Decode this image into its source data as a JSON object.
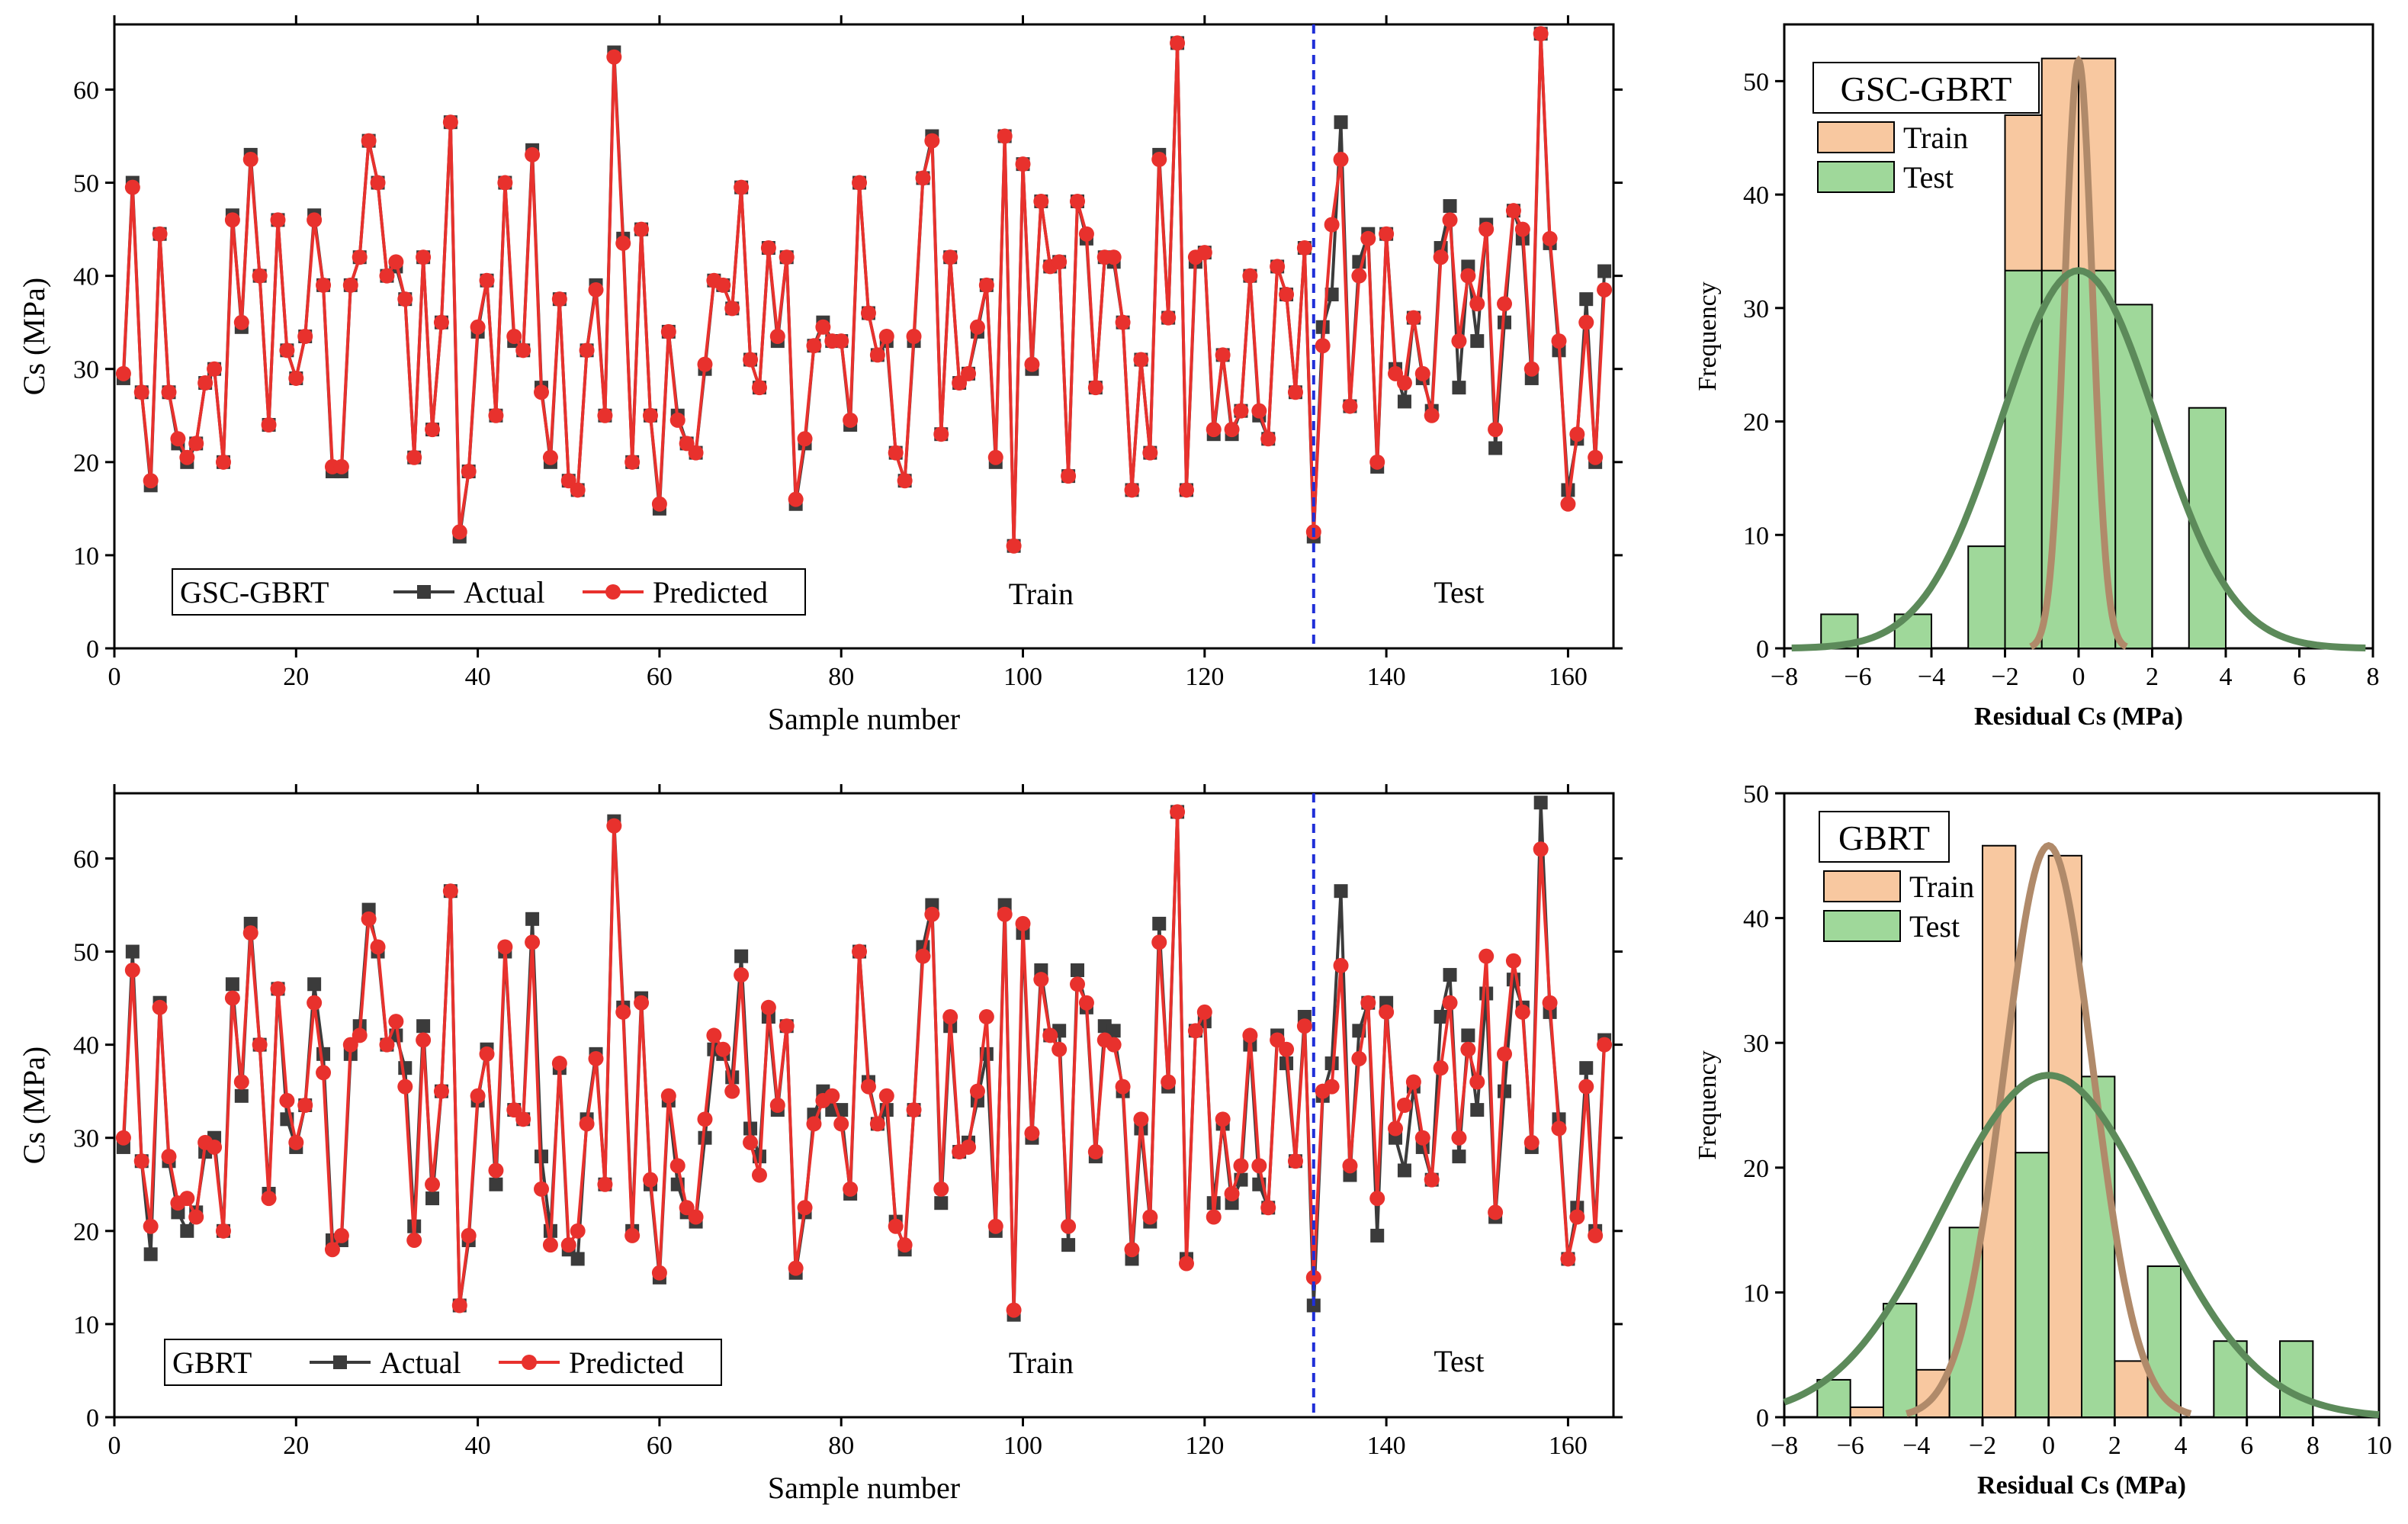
{
  "colors": {
    "actual": "#3b3b3b",
    "predicted": "#e8312d",
    "divider": "#1f2fd8",
    "train_bar": "#f8c8a0",
    "test_bar": "#9fd89a",
    "train_curve": "#b08a6a",
    "test_curve": "#5c8a5a"
  },
  "chart_data": [
    {
      "type": "line",
      "model": "GSC-GBRT",
      "legend": [
        "GSC-GBRT",
        "Actual",
        "Predicted"
      ],
      "xlabel": "Sample number",
      "ylabel": "Cs (MPa)",
      "xlim": [
        0,
        165
      ],
      "ylim": [
        0,
        67
      ],
      "xticks": [
        0,
        20,
        40,
        60,
        80,
        100,
        120,
        140,
        160
      ],
      "yticks": [
        0,
        10,
        20,
        30,
        40,
        50,
        60
      ],
      "split_at": 132,
      "region_labels": [
        "Train",
        "Test"
      ],
      "series": [
        {
          "name": "Actual",
          "values": [
            29,
            50,
            27.5,
            17.5,
            44.5,
            27.5,
            22,
            20,
            22,
            28.5,
            30,
            20,
            46.5,
            34.5,
            53,
            40,
            24,
            46,
            32,
            29,
            33.5,
            46.5,
            39,
            19,
            19,
            39,
            42,
            54.5,
            50,
            40,
            41,
            37.5,
            20.5,
            42,
            23.5,
            35,
            56.5,
            12,
            19,
            34,
            39.5,
            25,
            50,
            33,
            32,
            53.5,
            28,
            20,
            37.5,
            18,
            17,
            32,
            39,
            25,
            64,
            44,
            20,
            45,
            25,
            15,
            34,
            25,
            22,
            21,
            30,
            39.5,
            39,
            36.5,
            49.5,
            31,
            28,
            43,
            33,
            42,
            15.5,
            22,
            32.5,
            35,
            33,
            33,
            24,
            50,
            36,
            31.5,
            33,
            21,
            18,
            33,
            50.5,
            55,
            23,
            42,
            28.5,
            29.5,
            34,
            39,
            20,
            55,
            11,
            52,
            30,
            48,
            41,
            41.5,
            18.5,
            48,
            44,
            28,
            42,
            41.5,
            35,
            17,
            31,
            21,
            53,
            35.5,
            65,
            17,
            41.5,
            42.5,
            23,
            31.5,
            23,
            25.5,
            40,
            25,
            22.5,
            41,
            38,
            27.5,
            43,
            12,
            34.5,
            38,
            56.5,
            26,
            41.5,
            44.5,
            19.5,
            44.5,
            30,
            26.5,
            35.5,
            29,
            25.5,
            43,
            47.5,
            28,
            41,
            33,
            45.5,
            21.5,
            35,
            47,
            44,
            29,
            66,
            43.5,
            32,
            17,
            22.5,
            37.5,
            20,
            40.5
          ]
        },
        {
          "name": "Predicted",
          "values": [
            29.5,
            49.5,
            27.5,
            18,
            44.5,
            27.5,
            22.5,
            20.5,
            22,
            28.5,
            30,
            20,
            46,
            35,
            52.5,
            40,
            24,
            46,
            32,
            29,
            33.5,
            46,
            39,
            19.5,
            19.5,
            39,
            42,
            54.5,
            50,
            40,
            41.5,
            37.5,
            20.5,
            42,
            23.5,
            35,
            56.5,
            12.5,
            19,
            34.5,
            39.5,
            25,
            50,
            33.5,
            32,
            53,
            27.5,
            20.5,
            37.5,
            18,
            17,
            32,
            38.5,
            25,
            63.5,
            43.5,
            20,
            45,
            25,
            15.5,
            34,
            24.5,
            22,
            21,
            30.5,
            39.5,
            39,
            36.5,
            49.5,
            31,
            28,
            43,
            33.5,
            42,
            16,
            22.5,
            32.5,
            34.5,
            33,
            33,
            24.5,
            50,
            36,
            31.5,
            33.5,
            21,
            18,
            33.5,
            50.5,
            54.5,
            23,
            42,
            28.5,
            29.5,
            34.5,
            39,
            20.5,
            55,
            11,
            52,
            30.5,
            48,
            41,
            41.5,
            18.5,
            48,
            44.5,
            28,
            42,
            42,
            35,
            17,
            31,
            21,
            52.5,
            35.5,
            65,
            17,
            42,
            42.5,
            23.5,
            31.5,
            23.5,
            25.5,
            40,
            25.5,
            22.5,
            41,
            38,
            27.5,
            43,
            12.5,
            32.5,
            45.5,
            52.5,
            26,
            40,
            44,
            20,
            44.5,
            29.5,
            28.5,
            35.5,
            29.5,
            25,
            42,
            46,
            33,
            40,
            37,
            45,
            23.5,
            37,
            47,
            45,
            30,
            66,
            44,
            33,
            15.5,
            23,
            35,
            20.5,
            38.5
          ]
        }
      ]
    },
    {
      "type": "histogram",
      "model": "GSC-GBRT",
      "legend_title": "GSC-GBRT",
      "legend": [
        "Train",
        "Test"
      ],
      "xlabel": "Residual Cs (MPa)",
      "ylabel": "Frequency",
      "xlim": [
        -8,
        8
      ],
      "ylim": [
        0,
        55
      ],
      "xticks": [
        -8,
        -6,
        -4,
        -2,
        0,
        2,
        4,
        6,
        8
      ],
      "yticks": [
        0,
        10,
        20,
        30,
        40,
        50
      ],
      "series": [
        {
          "name": "Train",
          "bins": [
            [
              -2,
              -1,
              47
            ],
            [
              -1,
              0,
              52
            ],
            [
              0,
              1,
              52
            ]
          ]
        },
        {
          "name": "Test",
          "bins": [
            [
              -7,
              -6,
              3
            ],
            [
              -6,
              -5,
              0
            ],
            [
              -5,
              -4,
              3
            ],
            [
              -4,
              -3,
              0
            ],
            [
              -3,
              -2,
              9
            ],
            [
              -2,
              -1,
              33.3
            ],
            [
              -1,
              0,
              33.3
            ],
            [
              0,
              1,
              33.3
            ],
            [
              1,
              2,
              30.3
            ],
            [
              2,
              3,
              0
            ],
            [
              3,
              4,
              21.2
            ]
          ]
        }
      ],
      "fits": [
        {
          "name": "Train",
          "mean": 0.0,
          "sd": 0.38,
          "peak": 51.8,
          "range": [
            -1.3,
            1.3
          ]
        },
        {
          "name": "Test",
          "mean": 0.0,
          "sd": 2.1,
          "peak": 33.3,
          "range": [
            -7.8,
            7.8
          ]
        }
      ]
    },
    {
      "type": "line",
      "model": "GBRT",
      "legend": [
        "GBRT",
        "Actual",
        "Predicted"
      ],
      "xlabel": "Sample number",
      "ylabel": "Cs (MPa)",
      "xlim": [
        0,
        165
      ],
      "ylim": [
        0,
        67
      ],
      "xticks": [
        0,
        20,
        40,
        60,
        80,
        100,
        120,
        140,
        160
      ],
      "yticks": [
        0,
        10,
        20,
        30,
        40,
        50,
        60
      ],
      "split_at": 132,
      "region_labels": [
        "Train",
        "Test"
      ],
      "series": [
        {
          "name": "Actual",
          "values": [
            29,
            50,
            27.5,
            17.5,
            44.5,
            27.5,
            22,
            20,
            22,
            28.5,
            30,
            20,
            46.5,
            34.5,
            53,
            40,
            24,
            46,
            32,
            29,
            33.5,
            46.5,
            39,
            19,
            19,
            39,
            42,
            54.5,
            50,
            40,
            41,
            37.5,
            20.5,
            42,
            23.5,
            35,
            56.5,
            12,
            19,
            34,
            39.5,
            25,
            50,
            33,
            32,
            53.5,
            28,
            20,
            37.5,
            18,
            17,
            32,
            39,
            25,
            64,
            44,
            20,
            45,
            25,
            15,
            34,
            25,
            22,
            21,
            30,
            39.5,
            39,
            36.5,
            49.5,
            31,
            28,
            43,
            33,
            42,
            15.5,
            22,
            32.5,
            35,
            33,
            33,
            24,
            50,
            36,
            31.5,
            33,
            21,
            18,
            33,
            50.5,
            55,
            23,
            42,
            28.5,
            29.5,
            34,
            39,
            20,
            55,
            11,
            52,
            30,
            48,
            41,
            41.5,
            18.5,
            48,
            44,
            28,
            42,
            41.5,
            35,
            17,
            31,
            21,
            53,
            35.5,
            65,
            17,
            41.5,
            42.5,
            23,
            31.5,
            23,
            25.5,
            40,
            25,
            22.5,
            41,
            38,
            27.5,
            43,
            12,
            34.5,
            38,
            56.5,
            26,
            41.5,
            44.5,
            19.5,
            44.5,
            30,
            26.5,
            35.5,
            29,
            25.5,
            43,
            47.5,
            28,
            41,
            33,
            45.5,
            21.5,
            35,
            47,
            44,
            29,
            66,
            43.5,
            32,
            17,
            22.5,
            37.5,
            20,
            40.5
          ]
        },
        {
          "name": "Predicted",
          "values": [
            30,
            48,
            27.5,
            20.5,
            44,
            28,
            23,
            23.5,
            21.5,
            29.5,
            29,
            20,
            45,
            36,
            52,
            40,
            23.5,
            46,
            34,
            29.5,
            33.5,
            44.5,
            37,
            18,
            19.5,
            40,
            41,
            53.5,
            50.5,
            40,
            42.5,
            35.5,
            19,
            40.5,
            25,
            35,
            56.5,
            12,
            19.5,
            34.5,
            39,
            26.5,
            50.5,
            33,
            32,
            51,
            24.5,
            18.5,
            38,
            18.5,
            20,
            31.5,
            38.5,
            25,
            63.5,
            43.5,
            19.5,
            44.5,
            25.5,
            15.5,
            34.5,
            27,
            22.5,
            21.5,
            32,
            41,
            39.5,
            35,
            47.5,
            29.5,
            26,
            44,
            33.5,
            42,
            16,
            22.5,
            31.5,
            34,
            34.5,
            31.5,
            24.5,
            50,
            35.5,
            31.5,
            34.5,
            20.5,
            18.5,
            33,
            49.5,
            54,
            24.5,
            43,
            28.5,
            29,
            35,
            43,
            20.5,
            54,
            11.5,
            53,
            30.5,
            47,
            41,
            39.5,
            20.5,
            46.5,
            44.5,
            28.5,
            40.5,
            40,
            35.5,
            18,
            32,
            21.5,
            51,
            36,
            65,
            16.5,
            41.5,
            43.5,
            21.5,
            32,
            24,
            27,
            41,
            27,
            22.5,
            40.5,
            39.5,
            27.5,
            42,
            15,
            35,
            35.5,
            48.5,
            27,
            38.5,
            44.5,
            23.5,
            43.5,
            31,
            33.5,
            36,
            30,
            25.5,
            37.5,
            44.5,
            30,
            39.5,
            36,
            49.5,
            22,
            39,
            49,
            43.5,
            29.5,
            61,
            44.5,
            31,
            17,
            21.5,
            35.5,
            19.5,
            40
          ]
        }
      ]
    },
    {
      "type": "histogram",
      "model": "GBRT",
      "legend_title": "GBRT",
      "legend": [
        "Train",
        "Test"
      ],
      "xlabel": "Residual Cs (MPa)",
      "ylabel": "Frequency",
      "xlim": [
        -8,
        10
      ],
      "ylim": [
        0,
        50
      ],
      "xticks": [
        -8,
        -6,
        -4,
        -2,
        0,
        2,
        4,
        6,
        8,
        10
      ],
      "yticks": [
        0,
        10,
        20,
        30,
        40,
        50
      ],
      "series": [
        {
          "name": "Train",
          "bins": [
            [
              -6,
              -5,
              0.8
            ],
            [
              -4,
              -3,
              3.8
            ],
            [
              -2,
              -1,
              45.8
            ],
            [
              0,
              1,
              45
            ],
            [
              2,
              3,
              4.5
            ]
          ]
        },
        {
          "name": "Test",
          "bins": [
            [
              -7,
              -6,
              3
            ],
            [
              -5,
              -4,
              9.1
            ],
            [
              -3,
              -2,
              15.2
            ],
            [
              -1,
              0,
              21.2
            ],
            [
              1,
              2,
              27.3
            ],
            [
              3,
              4,
              12.1
            ],
            [
              5,
              6,
              6.1
            ],
            [
              7,
              8,
              6.1
            ]
          ]
        }
      ],
      "fits": [
        {
          "name": "Train",
          "mean": 0.0,
          "sd": 1.35,
          "peak": 45.8,
          "range": [
            -4.3,
            4.3
          ]
        },
        {
          "name": "Test",
          "mean": 0.0,
          "sd": 3.2,
          "peak": 27.4,
          "range": [
            -8,
            10
          ]
        }
      ]
    }
  ]
}
